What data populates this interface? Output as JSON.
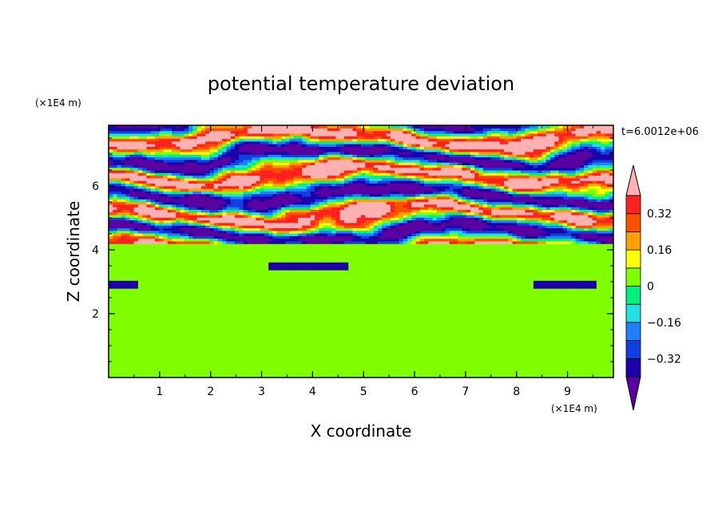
{
  "chart_data": {
    "type": "heatmap",
    "title": "potential temperature deviation",
    "time_label": "t=6.0012e+06",
    "xlabel": "X coordinate",
    "ylabel": "Z coordinate",
    "x_unit": "(×1E4 m)",
    "y_unit": "(×1E4 m)",
    "xlim": [
      0,
      9.9
    ],
    "ylim": [
      0,
      7.9
    ],
    "x_ticks": [
      "1",
      "2",
      "3",
      "4",
      "5",
      "6",
      "7",
      "8",
      "9"
    ],
    "y_ticks": [
      "2",
      "4",
      "6"
    ],
    "colorbar": {
      "labels": [
        "0.32",
        "0.16",
        "0",
        "−0.16",
        "−0.32"
      ],
      "levels": [
        -0.4,
        -0.32,
        -0.24,
        -0.16,
        -0.08,
        0,
        0.08,
        0.16,
        0.24,
        0.32,
        0.4
      ],
      "colors": [
        "#5a00a0",
        "#1c00a8",
        "#1040e0",
        "#2080ff",
        "#20e0e0",
        "#00f080",
        "#80ff00",
        "#ffff00",
        "#ffa000",
        "#ff5000",
        "#ff2020",
        "#ffb0b0"
      ]
    }
  }
}
